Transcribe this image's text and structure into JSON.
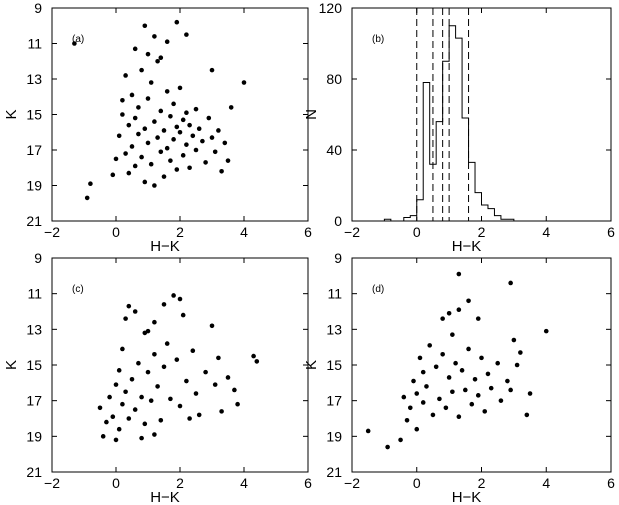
{
  "chart_data": [
    {
      "type": "scatter",
      "panel_label": "(a)",
      "xlabel": "H−K",
      "ylabel": "K",
      "xlim": [
        -2,
        6
      ],
      "ylim": [
        21,
        9
      ],
      "y_inverted": true,
      "xticks": [
        "−2",
        "0",
        "2",
        "4",
        "6"
      ],
      "yticks": [
        "9",
        "11",
        "13",
        "15",
        "17",
        "19",
        "21"
      ],
      "marker_color": "#000000",
      "points": [
        [
          -1.3,
          11.0
        ],
        [
          -0.9,
          19.7
        ],
        [
          -0.8,
          18.9
        ],
        [
          -0.1,
          18.4
        ],
        [
          0.0,
          17.5
        ],
        [
          0.1,
          16.2
        ],
        [
          0.2,
          15.0
        ],
        [
          0.2,
          14.2
        ],
        [
          0.3,
          12.8
        ],
        [
          0.3,
          17.2
        ],
        [
          0.4,
          15.6
        ],
        [
          0.4,
          18.3
        ],
        [
          0.5,
          16.8
        ],
        [
          0.5,
          13.9
        ],
        [
          0.6,
          15.2
        ],
        [
          0.6,
          17.9
        ],
        [
          0.7,
          16.1
        ],
        [
          0.7,
          14.6
        ],
        [
          0.8,
          12.5
        ],
        [
          0.8,
          17.4
        ],
        [
          0.9,
          15.8
        ],
        [
          0.9,
          18.8
        ],
        [
          1.0,
          14.1
        ],
        [
          1.0,
          16.6
        ],
        [
          1.1,
          13.2
        ],
        [
          1.1,
          17.8
        ],
        [
          1.2,
          15.4
        ],
        [
          1.2,
          19.0
        ],
        [
          1.3,
          16.3
        ],
        [
          1.3,
          12.0
        ],
        [
          1.4,
          14.8
        ],
        [
          1.4,
          17.1
        ],
        [
          1.5,
          15.9
        ],
        [
          1.5,
          18.5
        ],
        [
          1.6,
          13.7
        ],
        [
          1.6,
          16.9
        ],
        [
          1.7,
          15.1
        ],
        [
          1.7,
          17.6
        ],
        [
          1.8,
          14.4
        ],
        [
          1.8,
          16.4
        ],
        [
          1.9,
          15.7
        ],
        [
          1.9,
          18.1
        ],
        [
          2.0,
          16.0
        ],
        [
          2.0,
          13.5
        ],
        [
          2.1,
          17.3
        ],
        [
          2.1,
          15.3
        ],
        [
          2.2,
          16.7
        ],
        [
          2.2,
          14.9
        ],
        [
          2.3,
          18.0
        ],
        [
          2.3,
          15.6
        ],
        [
          2.4,
          16.2
        ],
        [
          2.5,
          17.0
        ],
        [
          2.5,
          14.7
        ],
        [
          2.6,
          15.8
        ],
        [
          2.7,
          16.5
        ],
        [
          2.8,
          17.7
        ],
        [
          2.9,
          15.2
        ],
        [
          3.0,
          16.3
        ],
        [
          3.0,
          12.5
        ],
        [
          3.1,
          17.1
        ],
        [
          3.2,
          15.9
        ],
        [
          3.3,
          18.2
        ],
        [
          3.4,
          16.6
        ],
        [
          3.5,
          17.6
        ],
        [
          3.6,
          14.6
        ],
        [
          4.0,
          13.2
        ],
        [
          0.9,
          10.0
        ],
        [
          1.2,
          10.6
        ],
        [
          1.4,
          11.8
        ],
        [
          1.9,
          9.8
        ],
        [
          2.2,
          10.5
        ],
        [
          0.6,
          11.3
        ],
        [
          1.0,
          11.6
        ],
        [
          1.6,
          10.9
        ]
      ]
    },
    {
      "type": "histogram",
      "panel_label": "(b)",
      "xlabel": "H−K",
      "ylabel": "N",
      "xlim": [
        -2,
        6
      ],
      "ylim": [
        0,
        120
      ],
      "xticks": [
        "−2",
        "0",
        "2",
        "4",
        "6"
      ],
      "yticks": [
        "0",
        "40",
        "80",
        "120"
      ],
      "bin_width": 0.2,
      "bins": [
        [
          -1.0,
          1
        ],
        [
          -0.8,
          0
        ],
        [
          -0.6,
          0
        ],
        [
          -0.4,
          2
        ],
        [
          -0.2,
          3
        ],
        [
          0.0,
          12
        ],
        [
          0.2,
          78
        ],
        [
          0.4,
          32
        ],
        [
          0.6,
          56
        ],
        [
          0.8,
          90
        ],
        [
          1.0,
          110
        ],
        [
          1.2,
          103
        ],
        [
          1.4,
          58
        ],
        [
          1.6,
          33
        ],
        [
          1.8,
          16
        ],
        [
          2.0,
          9
        ],
        [
          2.2,
          7
        ],
        [
          2.4,
          3
        ],
        [
          2.6,
          1
        ],
        [
          2.8,
          1
        ],
        [
          3.0,
          0
        ]
      ],
      "dashed_lines_x": [
        0.0,
        0.5,
        0.8,
        1.0,
        1.6
      ]
    },
    {
      "type": "scatter",
      "panel_label": "(c)",
      "xlabel": "H−K",
      "ylabel": "K",
      "xlim": [
        -2,
        6
      ],
      "ylim": [
        21,
        9
      ],
      "y_inverted": true,
      "xticks": [
        "−2",
        "0",
        "2",
        "4",
        "6"
      ],
      "yticks": [
        "9",
        "11",
        "13",
        "15",
        "17",
        "19",
        "21"
      ],
      "marker_color": "#000000",
      "points": [
        [
          -0.5,
          17.4
        ],
        [
          -0.4,
          19.0
        ],
        [
          -0.3,
          18.2
        ],
        [
          -0.2,
          16.8
        ],
        [
          -0.1,
          17.9
        ],
        [
          0.0,
          16.1
        ],
        [
          0.1,
          18.6
        ],
        [
          0.1,
          15.3
        ],
        [
          0.2,
          17.2
        ],
        [
          0.2,
          14.1
        ],
        [
          0.3,
          16.5
        ],
        [
          0.3,
          12.4
        ],
        [
          0.4,
          11.7
        ],
        [
          0.4,
          18.0
        ],
        [
          0.5,
          15.8
        ],
        [
          0.6,
          17.5
        ],
        [
          0.7,
          14.9
        ],
        [
          0.8,
          16.8
        ],
        [
          0.9,
          13.2
        ],
        [
          0.9,
          18.3
        ],
        [
          1.0,
          15.4
        ],
        [
          1.1,
          17.0
        ],
        [
          1.2,
          14.4
        ],
        [
          1.2,
          12.6
        ],
        [
          1.3,
          16.2
        ],
        [
          1.4,
          18.1
        ],
        [
          1.5,
          15.1
        ],
        [
          1.6,
          13.8
        ],
        [
          1.7,
          16.9
        ],
        [
          1.8,
          11.1
        ],
        [
          1.9,
          14.7
        ],
        [
          2.0,
          17.3
        ],
        [
          2.1,
          12.2
        ],
        [
          2.2,
          15.9
        ],
        [
          2.3,
          18.0
        ],
        [
          2.4,
          14.2
        ],
        [
          2.5,
          16.6
        ],
        [
          2.6,
          17.8
        ],
        [
          2.8,
          15.4
        ],
        [
          3.0,
          12.8
        ],
        [
          3.1,
          16.1
        ],
        [
          3.2,
          14.6
        ],
        [
          3.3,
          17.6
        ],
        [
          3.5,
          15.7
        ],
        [
          3.7,
          16.4
        ],
        [
          3.8,
          17.2
        ],
        [
          4.3,
          14.5
        ],
        [
          4.4,
          14.8
        ],
        [
          0.6,
          12.0
        ],
        [
          1.0,
          13.1
        ],
        [
          1.5,
          11.6
        ],
        [
          2.0,
          11.3
        ],
        [
          1.2,
          18.9
        ],
        [
          0.0,
          19.2
        ],
        [
          0.8,
          19.1
        ]
      ]
    },
    {
      "type": "scatter",
      "panel_label": "(d)",
      "xlabel": "H−K",
      "ylabel": "K",
      "xlim": [
        -2,
        6
      ],
      "ylim": [
        21,
        9
      ],
      "y_inverted": true,
      "xticks": [
        "−2",
        "0",
        "2",
        "4",
        "6"
      ],
      "yticks": [
        "9",
        "11",
        "13",
        "15",
        "17",
        "19",
        "21"
      ],
      "marker_color": "#000000",
      "points": [
        [
          -1.5,
          18.7
        ],
        [
          -0.9,
          19.6
        ],
        [
          -0.5,
          19.2
        ],
        [
          -0.4,
          16.8
        ],
        [
          -0.3,
          18.1
        ],
        [
          -0.2,
          17.4
        ],
        [
          -0.1,
          15.9
        ],
        [
          0.0,
          16.6
        ],
        [
          0.0,
          18.6
        ],
        [
          0.1,
          14.6
        ],
        [
          0.2,
          17.1
        ],
        [
          0.2,
          15.4
        ],
        [
          0.3,
          16.2
        ],
        [
          0.4,
          13.9
        ],
        [
          0.5,
          17.8
        ],
        [
          0.6,
          15.1
        ],
        [
          0.7,
          16.9
        ],
        [
          0.8,
          14.4
        ],
        [
          0.8,
          12.4
        ],
        [
          0.9,
          17.4
        ],
        [
          1.0,
          15.7
        ],
        [
          1.1,
          13.3
        ],
        [
          1.1,
          16.5
        ],
        [
          1.2,
          14.9
        ],
        [
          1.3,
          17.9
        ],
        [
          1.3,
          11.9
        ],
        [
          1.4,
          15.3
        ],
        [
          1.5,
          16.4
        ],
        [
          1.6,
          14.1
        ],
        [
          1.7,
          17.2
        ],
        [
          1.8,
          15.8
        ],
        [
          1.9,
          16.7
        ],
        [
          2.0,
          14.6
        ],
        [
          2.1,
          17.6
        ],
        [
          2.2,
          15.5
        ],
        [
          2.3,
          16.3
        ],
        [
          2.5,
          14.9
        ],
        [
          2.6,
          17.0
        ],
        [
          2.8,
          15.9
        ],
        [
          2.9,
          16.4
        ],
        [
          3.0,
          13.6
        ],
        [
          3.1,
          15.0
        ],
        [
          3.2,
          14.3
        ],
        [
          3.4,
          17.8
        ],
        [
          3.5,
          16.6
        ],
        [
          4.0,
          13.1
        ],
        [
          1.3,
          9.9
        ],
        [
          2.9,
          10.4
        ],
        [
          1.6,
          11.4
        ],
        [
          1.0,
          12.1
        ],
        [
          1.9,
          12.4
        ]
      ]
    }
  ]
}
